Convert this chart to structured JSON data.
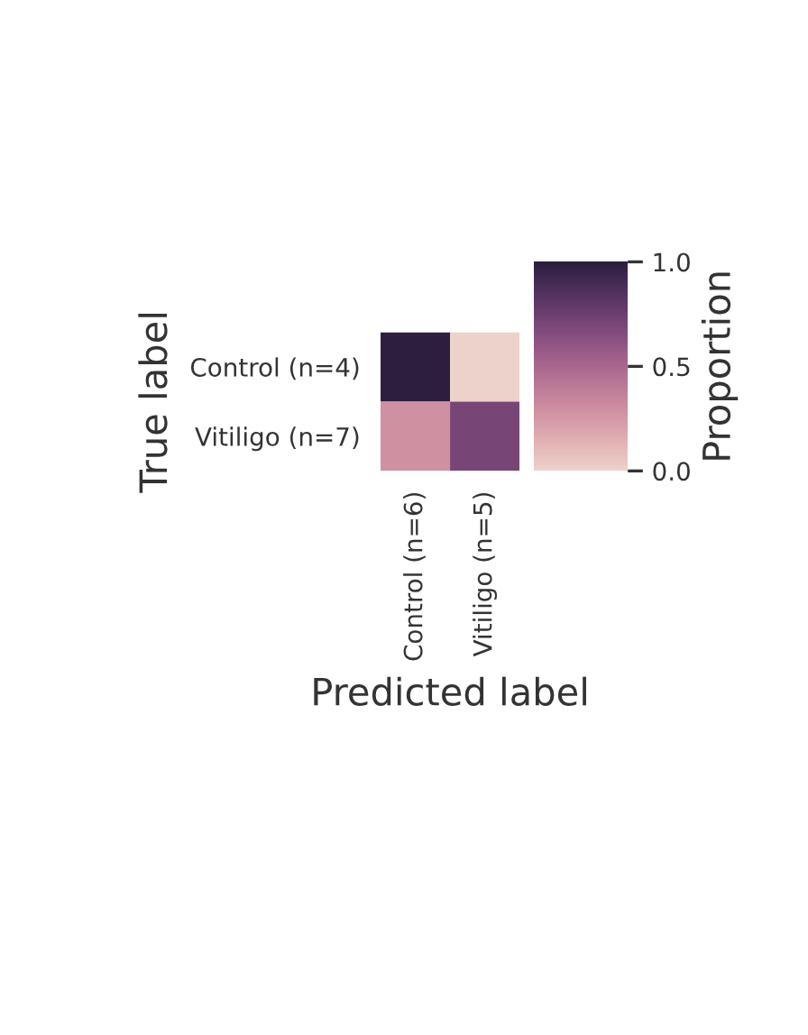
{
  "chart_data": {
    "type": "heatmap",
    "xlabel": "Predicted label",
    "ylabel": "True label",
    "clabel": "Proportion",
    "categories": [
      "Control (n=6)",
      "Vitiligo (n=5)"
    ],
    "y_categories": [
      "Control (n=4)",
      "Vitiligo (n=7)"
    ],
    "cells": [
      [
        1.0,
        0.0
      ],
      [
        0.29,
        0.71
      ]
    ],
    "clim": [
      0.0,
      1.0
    ],
    "cticks": [
      {
        "value": 0.0,
        "label": "0.0"
      },
      {
        "value": 0.5,
        "label": "0.5"
      },
      {
        "value": 1.0,
        "label": "1.0"
      }
    ]
  }
}
